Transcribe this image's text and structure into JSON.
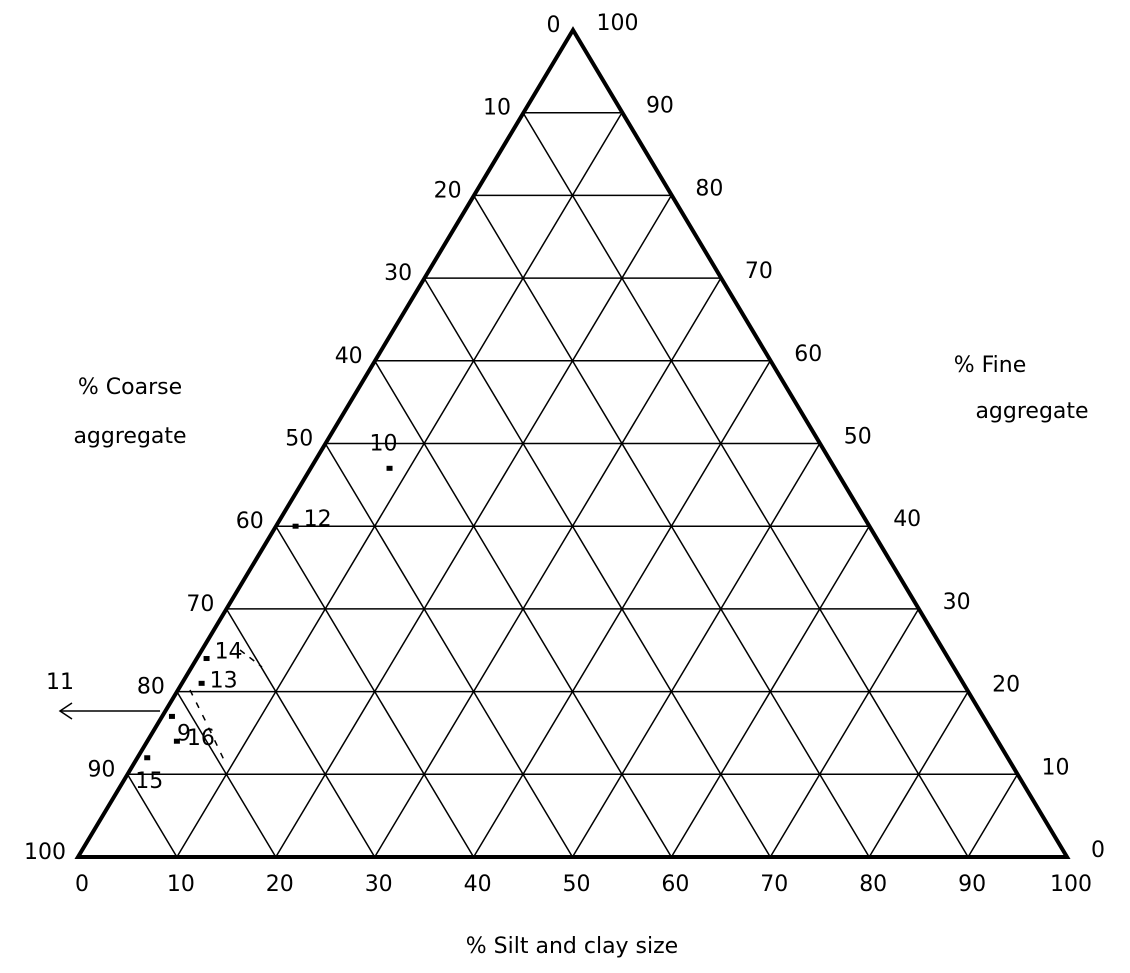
{
  "chart_data": {
    "type": "ternary",
    "axes": {
      "bottom": {
        "label": [
          "% Silt and clay size"
        ],
        "ticks": [
          0,
          10,
          20,
          30,
          40,
          50,
          60,
          70,
          80,
          90,
          100
        ]
      },
      "left": {
        "label": [
          "% Coarse",
          "aggregate"
        ],
        "ticks": [
          0,
          10,
          20,
          30,
          40,
          50,
          60,
          70,
          80,
          90,
          100
        ]
      },
      "right": {
        "label": [
          "% Fine",
          "aggregate"
        ],
        "ticks": [
          0,
          10,
          20,
          30,
          40,
          50,
          60,
          70,
          80,
          90,
          100
        ]
      }
    },
    "points": [
      {
        "label": "10",
        "silt": 8,
        "coarse": 45,
        "fine": 47
      },
      {
        "label": "12",
        "silt": 2,
        "coarse": 58,
        "fine": 40
      },
      {
        "label": "14",
        "silt": 1,
        "coarse": 75,
        "fine": 24
      },
      {
        "label": "13",
        "silt": 2,
        "coarse": 77,
        "fine": 21
      },
      {
        "label": "9",
        "silt": 1,
        "coarse": 82,
        "fine": 17
      },
      {
        "label": "16",
        "silt": 3,
        "coarse": 83,
        "fine": 14
      },
      {
        "label": "15",
        "silt": 1,
        "coarse": 87,
        "fine": 12
      }
    ],
    "annotations": [
      "11"
    ],
    "color": "#000000",
    "grid": true
  }
}
